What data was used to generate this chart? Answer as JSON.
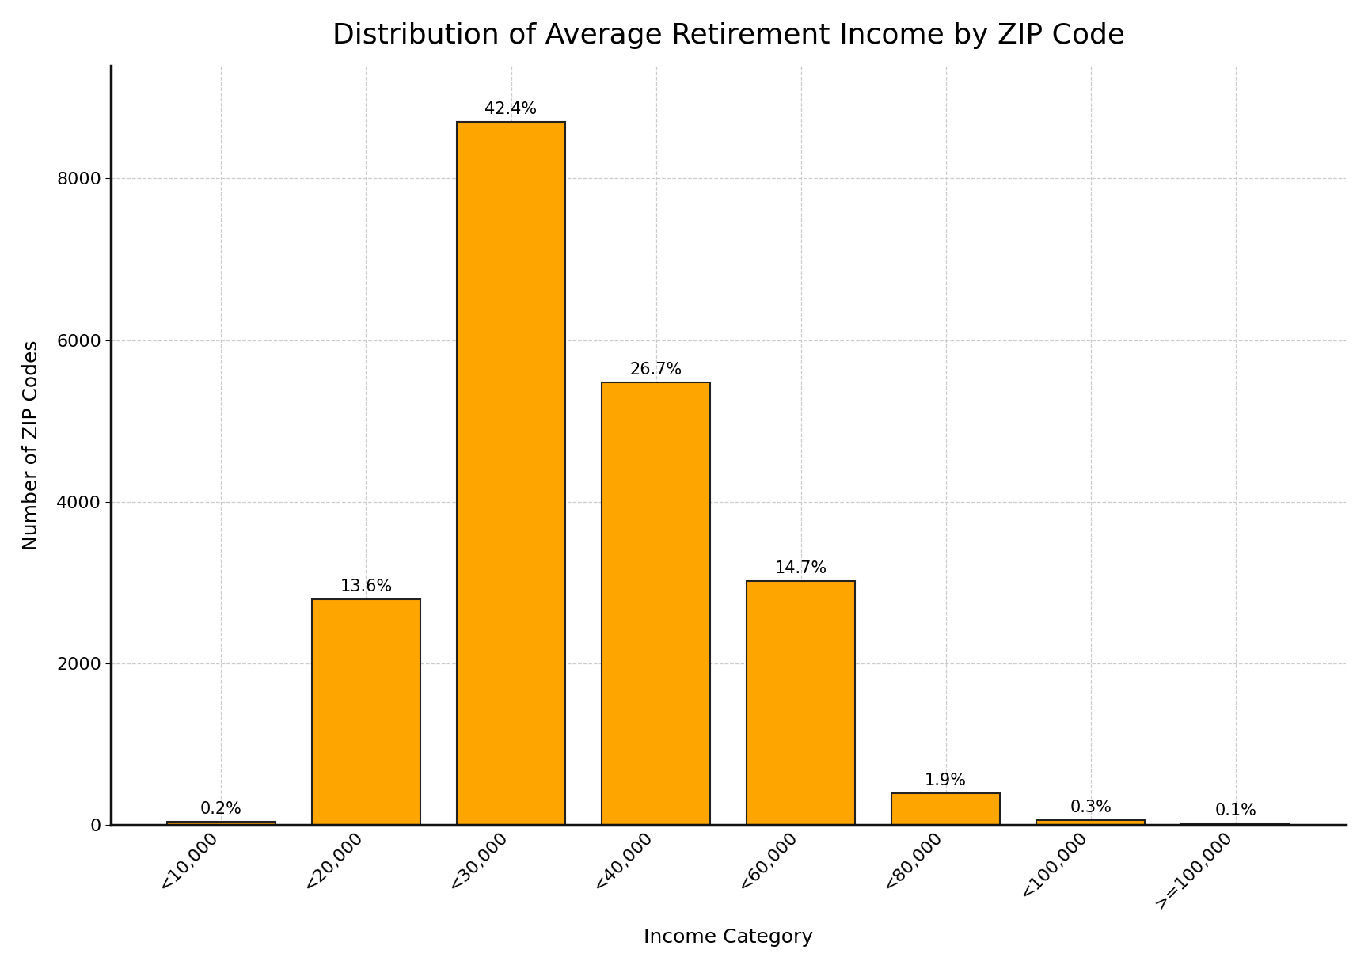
{
  "title": "Distribution of Average Retirement Income by ZIP Code",
  "xlabel": "Income Category",
  "ylabel": "Number of ZIP Codes",
  "categories": [
    "<10,000",
    "<20,000",
    "<30,000",
    "<40,000",
    "<60,000",
    "<80,000",
    "<100,000",
    ">=100,000"
  ],
  "values": [
    41,
    2793,
    8700,
    5480,
    3015,
    390,
    62,
    21
  ],
  "percentages": [
    "0.2%",
    "13.6%",
    "42.4%",
    "26.7%",
    "14.7%",
    "1.9%",
    "0.3%",
    "0.1%"
  ],
  "bar_color": "#FFA500",
  "bar_edgecolor": "#222222",
  "background_color": "#FFFFFF",
  "grid_color": "#CCCCCC",
  "title_fontsize": 26,
  "label_fontsize": 18,
  "tick_fontsize": 16,
  "annotation_fontsize": 15,
  "ylim": [
    0,
    9400
  ],
  "bar_width": 0.75,
  "spine_linewidth": 2.5
}
